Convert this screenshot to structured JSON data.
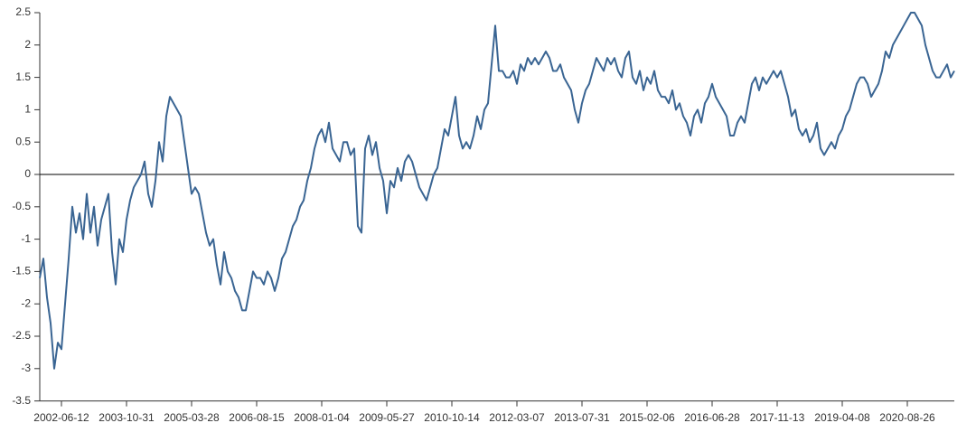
{
  "chart_data": {
    "type": "line",
    "categories": [
      null,
      null,
      null,
      null,
      null,
      null,
      "2002-06-12",
      null,
      null,
      null,
      null,
      null,
      null,
      null,
      null,
      null,
      null,
      null,
      null,
      null,
      null,
      null,
      null,
      null,
      "2003-10-31",
      null,
      null,
      null,
      null,
      null,
      null,
      null,
      null,
      null,
      null,
      null,
      null,
      null,
      null,
      null,
      null,
      null,
      "2005-03-28",
      null,
      null,
      null,
      null,
      null,
      null,
      null,
      null,
      null,
      null,
      null,
      null,
      null,
      null,
      null,
      null,
      null,
      "2006-08-15",
      null,
      null,
      null,
      null,
      null,
      null,
      null,
      null,
      null,
      null,
      null,
      null,
      null,
      null,
      null,
      null,
      null,
      "2008-01-04",
      null,
      null,
      null,
      null,
      null,
      null,
      null,
      null,
      null,
      null,
      null,
      null,
      null,
      null,
      null,
      null,
      null,
      "2009-05-27",
      null,
      null,
      null,
      null,
      null,
      null,
      null,
      null,
      null,
      null,
      null,
      null,
      null,
      null,
      null,
      null,
      null,
      "2010-10-14",
      null,
      null,
      null,
      null,
      null,
      null,
      null,
      null,
      null,
      null,
      null,
      null,
      null,
      null,
      null,
      null,
      null,
      "2012-03-07",
      null,
      null,
      null,
      null,
      null,
      null,
      null,
      null,
      null,
      null,
      null,
      null,
      null,
      null,
      null,
      null,
      null,
      "2013-07-31",
      null,
      null,
      null,
      null,
      null,
      null,
      null,
      null,
      null,
      null,
      null,
      null,
      null,
      null,
      null,
      null,
      null,
      "2015-02-06",
      null,
      null,
      null,
      null,
      null,
      null,
      null,
      null,
      null,
      null,
      null,
      null,
      null,
      null,
      null,
      null,
      null,
      "2016-06-28",
      null,
      null,
      null,
      null,
      null,
      null,
      null,
      null,
      null,
      null,
      null,
      null,
      null,
      null,
      null,
      null,
      null,
      "2017-11-13",
      null,
      null,
      null,
      null,
      null,
      null,
      null,
      null,
      null,
      null,
      null,
      null,
      null,
      null,
      null,
      null,
      null,
      "2019-04-08",
      null,
      null,
      null,
      null,
      null,
      null,
      null,
      null,
      null,
      null,
      null,
      null,
      null,
      null,
      null,
      null,
      null,
      "2020-08-26",
      null,
      null,
      null,
      null,
      null,
      null,
      null,
      null,
      null,
      null,
      null,
      null,
      null
    ],
    "series": [
      {
        "color": "#3a6593",
        "values": [
          -1.6,
          -1.3,
          -1.9,
          -2.3,
          -3.0,
          -2.6,
          -2.7,
          -2.0,
          -1.3,
          -0.5,
          -0.9,
          -0.6,
          -1.0,
          -0.3,
          -0.9,
          -0.5,
          -1.1,
          -0.7,
          -0.5,
          -0.3,
          -1.2,
          -1.7,
          -1.0,
          -1.2,
          -0.7,
          -0.4,
          -0.2,
          -0.1,
          0.0,
          0.2,
          -0.3,
          -0.5,
          -0.1,
          0.5,
          0.2,
          0.9,
          1.2,
          1.1,
          1.0,
          0.9,
          0.5,
          0.1,
          -0.3,
          -0.2,
          -0.3,
          -0.6,
          -0.9,
          -1.1,
          -1.0,
          -1.4,
          -1.7,
          -1.2,
          -1.5,
          -1.6,
          -1.8,
          -1.9,
          -2.1,
          -2.1,
          -1.8,
          -1.5,
          -1.6,
          -1.6,
          -1.7,
          -1.5,
          -1.6,
          -1.8,
          -1.6,
          -1.3,
          -1.2,
          -1.0,
          -0.8,
          -0.7,
          -0.5,
          -0.4,
          -0.1,
          0.1,
          0.4,
          0.6,
          0.7,
          0.5,
          0.8,
          0.4,
          0.3,
          0.2,
          0.5,
          0.5,
          0.3,
          0.4,
          -0.8,
          -0.9,
          0.4,
          0.6,
          0.3,
          0.5,
          0.1,
          -0.1,
          -0.6,
          -0.1,
          -0.2,
          0.1,
          -0.1,
          0.2,
          0.3,
          0.2,
          0.0,
          -0.2,
          -0.3,
          -0.4,
          -0.2,
          0.0,
          0.1,
          0.4,
          0.7,
          0.6,
          0.9,
          1.2,
          0.6,
          0.4,
          0.5,
          0.4,
          0.6,
          0.9,
          0.7,
          1.0,
          1.1,
          1.7,
          2.3,
          1.6,
          1.6,
          1.5,
          1.5,
          1.6,
          1.4,
          1.7,
          1.6,
          1.8,
          1.7,
          1.8,
          1.7,
          1.8,
          1.9,
          1.8,
          1.6,
          1.6,
          1.7,
          1.5,
          1.4,
          1.3,
          1.0,
          0.8,
          1.1,
          1.3,
          1.4,
          1.6,
          1.8,
          1.7,
          1.6,
          1.8,
          1.7,
          1.8,
          1.6,
          1.5,
          1.8,
          1.9,
          1.5,
          1.4,
          1.6,
          1.3,
          1.5,
          1.4,
          1.6,
          1.3,
          1.2,
          1.2,
          1.1,
          1.3,
          1.0,
          1.1,
          0.9,
          0.8,
          0.6,
          0.9,
          1.0,
          0.8,
          1.1,
          1.2,
          1.4,
          1.2,
          1.1,
          1.0,
          0.9,
          0.6,
          0.6,
          0.8,
          0.9,
          0.8,
          1.1,
          1.4,
          1.5,
          1.3,
          1.5,
          1.4,
          1.5,
          1.6,
          1.5,
          1.6,
          1.4,
          1.2,
          0.9,
          1.0,
          0.7,
          0.6,
          0.7,
          0.5,
          0.6,
          0.8,
          0.4,
          0.3,
          0.4,
          0.5,
          0.4,
          0.6,
          0.7,
          0.9,
          1.0,
          1.2,
          1.4,
          1.5,
          1.5,
          1.4,
          1.2,
          1.3,
          1.4,
          1.6,
          1.9,
          1.8,
          2.0,
          2.1,
          2.2,
          2.3,
          2.4,
          2.5,
          2.5,
          2.4,
          2.3,
          2.0,
          1.8,
          1.6,
          1.5,
          1.5,
          1.6,
          1.7,
          1.5,
          1.6
        ]
      }
    ],
    "ylim": [
      -3.5,
      2.5
    ],
    "yticks": [
      -3.5,
      -3,
      -2.5,
      -2,
      -1.5,
      -1,
      -0.5,
      0,
      0.5,
      1,
      1.5,
      2,
      2.5
    ],
    "zero_line": true
  }
}
